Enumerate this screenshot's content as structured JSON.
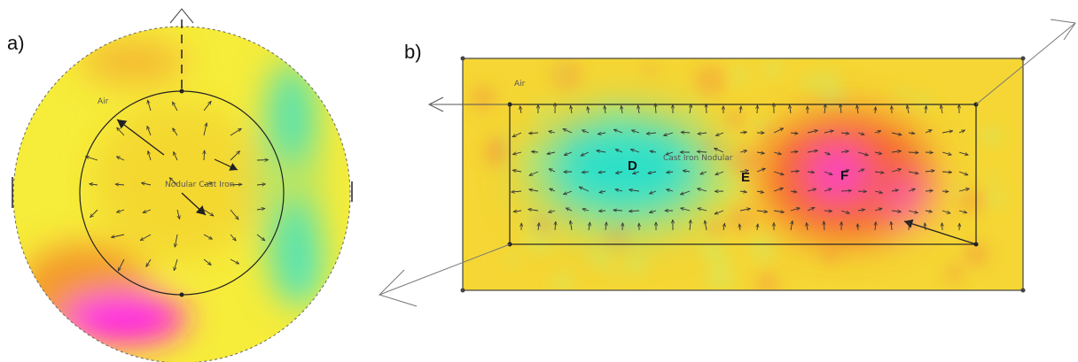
{
  "figure": {
    "panel_a": {
      "letter": "a)",
      "inner_label": "Nodular Cast Iron",
      "outer_label": "Air",
      "colors": {
        "outer": "#f6ec3a",
        "inner": "#f3c92a",
        "cyan": "#19e6e6",
        "magenta": "#ff1ee6",
        "orange": "#f49a2c"
      }
    },
    "panel_b": {
      "letter": "b)",
      "inner_label": "Cast Iron Nodular",
      "outer_label": "Air",
      "points": [
        {
          "id": "D",
          "label": "D"
        },
        {
          "id": "E",
          "label": "E"
        },
        {
          "id": "F",
          "label": "F"
        }
      ],
      "colors": {
        "base": "#f5d634",
        "cyan": "#2de0c8",
        "magenta": "#ff2ee0",
        "red": "#f5622a"
      }
    }
  }
}
